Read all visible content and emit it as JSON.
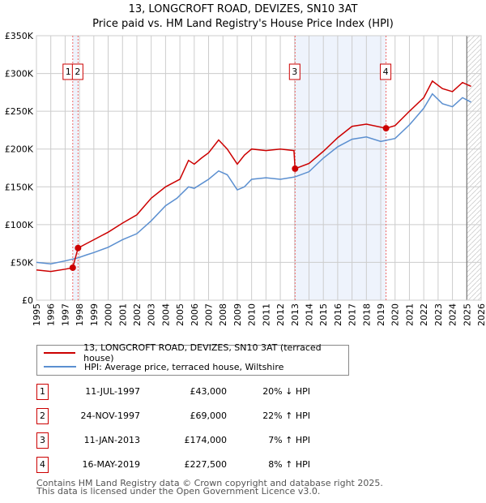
{
  "title": "13, LONGCROFT ROAD, DEVIZES, SN10 3AT",
  "subtitle": "Price paid vs. HM Land Registry's House Price Index (HPI)",
  "chart_data": {
    "type": "line",
    "title": "13, LONGCROFT ROAD, DEVIZES, SN10 3AT",
    "subtitle": "Price paid vs. HM Land Registry's House Price Index (HPI)",
    "xlim": [
      1995,
      2026
    ],
    "ylim": [
      0,
      350000
    ],
    "x_ticks": [
      1995,
      1996,
      1997,
      1998,
      1999,
      2000,
      2001,
      2002,
      2003,
      2004,
      2005,
      2006,
      2007,
      2008,
      2009,
      2010,
      2011,
      2012,
      2013,
      2014,
      2015,
      2016,
      2017,
      2018,
      2019,
      2020,
      2021,
      2022,
      2023,
      2024,
      2025,
      2026
    ],
    "y_ticks": [
      0,
      50000,
      100000,
      150000,
      200000,
      250000,
      300000,
      350000
    ],
    "y_tick_labels": [
      "£0",
      "£50K",
      "£100K",
      "£150K",
      "£200K",
      "£250K",
      "£300K",
      "£350K"
    ],
    "grid": true,
    "series": [
      {
        "name": "13, LONGCROFT ROAD, DEVIZES, SN10 3AT (terraced house)",
        "color": "#cc0000",
        "x": [
          1995,
          1996,
          1997,
          1997.53,
          1997.9,
          1998.5,
          1999,
          2000,
          2001,
          2002,
          2003,
          2004,
          2005,
          2005.6,
          2006,
          2006.5,
          2007,
          2007.7,
          2008.3,
          2009,
          2009.5,
          2010,
          2011,
          2012,
          2012.95,
          2013.03,
          2014,
          2015,
          2016,
          2017,
          2018,
          2019.37,
          2020,
          2021,
          2022,
          2022.6,
          2023.3,
          2024,
          2024.7,
          2025.3
        ],
        "y": [
          40000,
          38000,
          41000,
          43000,
          69000,
          75000,
          80000,
          90000,
          102000,
          113000,
          135000,
          150000,
          160000,
          185000,
          180000,
          188000,
          195000,
          212000,
          200000,
          180000,
          192000,
          200000,
          198000,
          200000,
          198000,
          174000,
          181000,
          197000,
          215000,
          230000,
          233000,
          227500,
          231000,
          250000,
          268000,
          290000,
          280000,
          276000,
          288000,
          283000
        ]
      },
      {
        "name": "HPI: Average price, terraced house, Wiltshire",
        "color": "#5b8fd0",
        "x": [
          1995,
          1996,
          1997,
          1997.9,
          1998.5,
          1999,
          2000,
          2001,
          2002,
          2003,
          2004,
          2004.8,
          2005.6,
          2006,
          2007,
          2007.7,
          2008.3,
          2009,
          2009.5,
          2010,
          2011,
          2012,
          2013,
          2014,
          2015,
          2016,
          2017,
          2018,
          2019,
          2020,
          2021,
          2022,
          2022.6,
          2023.3,
          2024,
          2024.7,
          2025.3
        ],
        "y": [
          50000,
          48000,
          52000,
          56000,
          60000,
          63000,
          70000,
          80000,
          88000,
          105000,
          125000,
          135000,
          150000,
          148000,
          160000,
          171000,
          166000,
          146000,
          150000,
          160000,
          162000,
          160000,
          163000,
          170000,
          188000,
          203000,
          213000,
          216000,
          210000,
          214000,
          232000,
          254000,
          273000,
          260000,
          256000,
          268000,
          262000
        ]
      }
    ],
    "sales": [
      {
        "label": "1",
        "date": "11-JUL-1997",
        "x": 1997.53,
        "price": "£43,000",
        "value": 43000,
        "hpi": "20% ↓ HPI"
      },
      {
        "label": "2",
        "date": "24-NOV-1997",
        "x": 1997.9,
        "price": "£69,000",
        "value": 69000,
        "hpi": "22% ↑ HPI"
      },
      {
        "label": "3",
        "date": "11-JAN-2013",
        "x": 2013.03,
        "price": "£174,000",
        "value": 174000,
        "hpi": "7% ↑ HPI"
      },
      {
        "label": "4",
        "date": "16-MAY-2019",
        "x": 2019.37,
        "price": "£227,500",
        "value": 227500,
        "hpi": "8% ↑ HPI"
      }
    ],
    "shaded_ranges": [
      [
        1997.53,
        1997.9
      ],
      [
        2013.03,
        2019.37
      ]
    ],
    "forecast_start": 2025.0,
    "legend": "below"
  },
  "footer": [
    "Contains HM Land Registry data © Crown copyright and database right 2025.",
    "This data is licensed under the Open Government Licence v3.0."
  ]
}
